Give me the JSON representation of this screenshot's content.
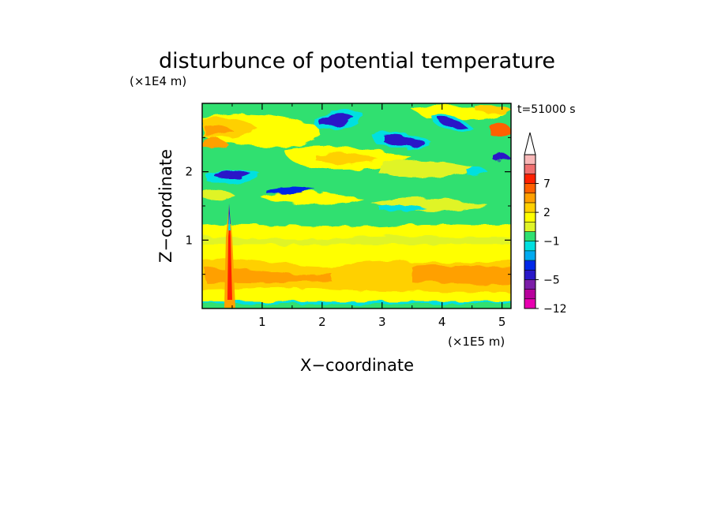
{
  "chart_data": {
    "type": "heatmap",
    "title": "disturbunce of potential temperature",
    "xlabel": "X−coordinate",
    "ylabel": "Z−coordinate",
    "x_unit": "(×1E5 m)",
    "y_unit": "(×1E4 m)",
    "time_label": "t=51000 s",
    "xlim": [
      0,
      5.15
    ],
    "ylim": [
      0,
      3.0
    ],
    "x_ticks": [
      1,
      2,
      3,
      4,
      5
    ],
    "y_ticks": [
      1,
      2
    ],
    "x_tick_labels": [
      "1",
      "2",
      "3",
      "4",
      "5"
    ],
    "y_tick_labels": [
      "1",
      "2"
    ],
    "colorbar": {
      "levels": [
        -12,
        -9,
        -7,
        -5,
        -4,
        -3,
        -2,
        -1,
        0,
        1,
        2,
        3,
        5,
        7,
        9,
        11
      ],
      "tick_values": [
        -12,
        -5,
        -1,
        2,
        7
      ],
      "tick_labels": [
        "−12",
        "−5",
        "−1",
        "2",
        "7"
      ],
      "colors": [
        "#e800b0",
        "#b8009c",
        "#7c1ea8",
        "#2a18c8",
        "#0028e8",
        "#00aaf0",
        "#00e0e0",
        "#30e070",
        "#e0f428",
        "#ffff00",
        "#ffd000",
        "#ffa000",
        "#ff6000",
        "#ff2000",
        "#f07070",
        "#f8b8b8"
      ],
      "extend": "max"
    },
    "features": [
      {
        "name": "surface-warm-layer",
        "x": [
          0,
          5.15
        ],
        "z": [
          0.1,
          0.6
        ],
        "value": 1.5
      },
      {
        "name": "near-surface-cool",
        "x": [
          0,
          5.15
        ],
        "z": [
          0,
          0.05
        ],
        "value": -0.5
      },
      {
        "name": "mountain-plume",
        "x": 0.45,
        "z": [
          0,
          1.6
        ],
        "value": 7
      },
      {
        "name": "mid-level-band",
        "x": [
          0,
          5.15
        ],
        "z": [
          1.1,
          1.7
        ],
        "value": -0.5
      },
      {
        "name": "cold-patch-left",
        "x": [
          0.3,
          0.8
        ],
        "z": [
          1.85,
          2.0
        ],
        "value": -5
      },
      {
        "name": "cold-patch-upper-mid",
        "x": [
          2.0,
          2.5
        ],
        "z": [
          2.6,
          2.9
        ],
        "value": -5
      },
      {
        "name": "cold-patch-mid",
        "x": [
          3.0,
          3.6
        ],
        "z": [
          2.35,
          2.5
        ],
        "value": -5
      },
      {
        "name": "cold-patch-right",
        "x": [
          3.9,
          4.5
        ],
        "z": [
          2.6,
          2.8
        ],
        "value": -5
      },
      {
        "name": "warm-patch-upper-left",
        "x": [
          0,
          0.8
        ],
        "z": [
          2.5,
          2.9
        ],
        "value": 3
      }
    ]
  }
}
